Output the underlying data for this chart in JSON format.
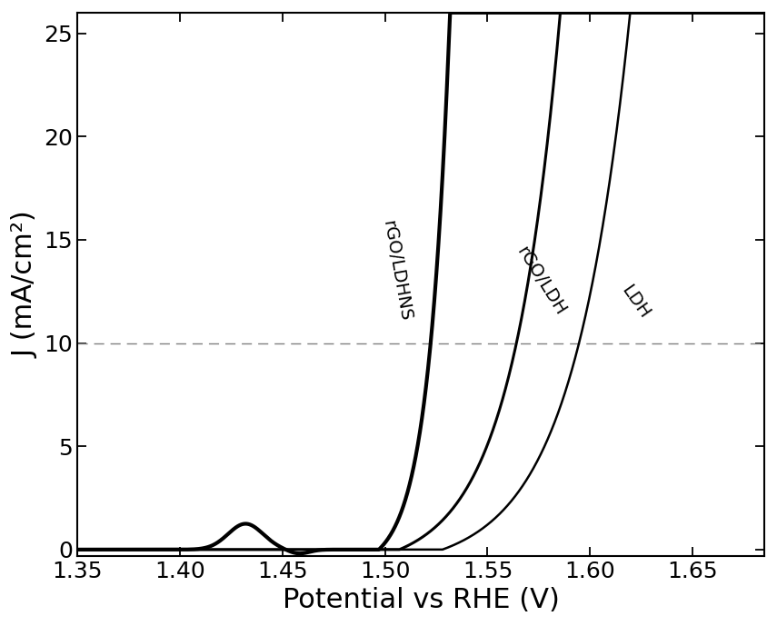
{
  "xlim": [
    1.35,
    1.685
  ],
  "ylim": [
    -0.3,
    26
  ],
  "xlabel": "Potential vs RHE (V)",
  "ylabel": "J (mA/cm²)",
  "xlabel_fontsize": 22,
  "ylabel_fontsize": 22,
  "tick_fontsize": 18,
  "dashed_line_y": 10,
  "background_color": "#ffffff",
  "curve_color": "#000000",
  "label_rGO_LDHNS": "rGO/LDHNS",
  "label_rGO_LDH": "rGO/LDH",
  "label_LDH": "LDH",
  "xticks": [
    1.35,
    1.4,
    1.45,
    1.5,
    1.55,
    1.6,
    1.65
  ],
  "yticks": [
    0,
    5,
    10,
    15,
    20,
    25
  ],
  "lw_thick": 3.0,
  "lw_mid": 2.2,
  "lw_thin": 1.8
}
